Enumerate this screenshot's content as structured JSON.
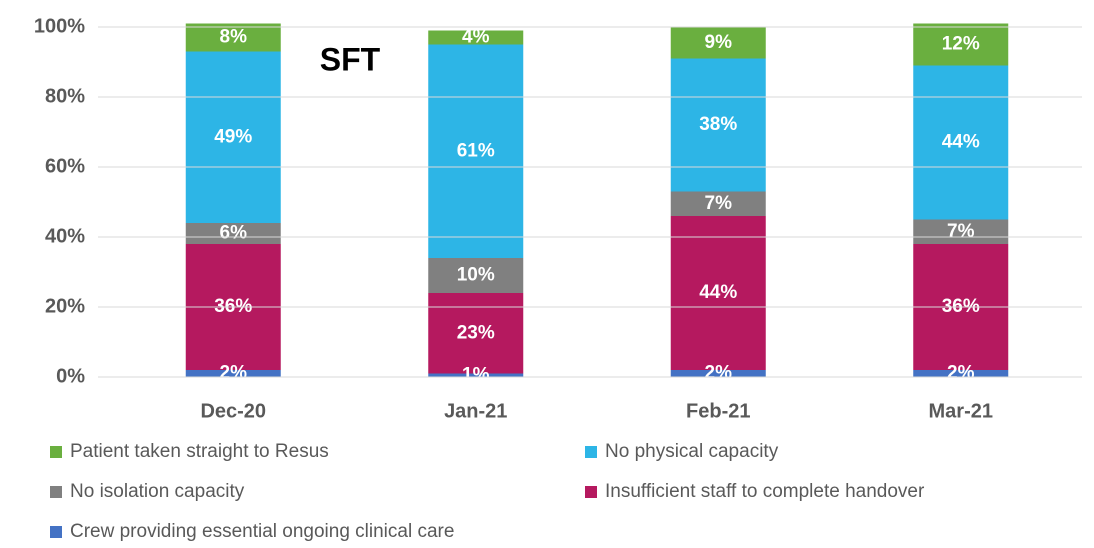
{
  "chart_data": {
    "type": "stacked_bar",
    "annotation": "SFT",
    "categories": [
      "Dec-20",
      "Jan-21",
      "Feb-21",
      "Mar-21"
    ],
    "series": [
      {
        "name": "Patient taken straight to Resus",
        "color": "#6aaf3f",
        "values": [
          8,
          4,
          9,
          12
        ],
        "value_labels": [
          "8%",
          "4%",
          "9%",
          "12%"
        ]
      },
      {
        "name": "No physical capacity",
        "color": "#2db5e6",
        "values": [
          49,
          61,
          38,
          44
        ],
        "value_labels": [
          "49%",
          "61%",
          "38%",
          "44%"
        ]
      },
      {
        "name": "No isolation capacity",
        "color": "#808080",
        "values": [
          6,
          10,
          7,
          7
        ],
        "value_labels": [
          "6%",
          "10%",
          "7%",
          "7%"
        ]
      },
      {
        "name": "Insufficient staff to complete handover",
        "color": "#b5195f",
        "values": [
          36,
          23,
          44,
          36
        ],
        "value_labels": [
          "36%",
          "23%",
          "44%",
          "36%"
        ]
      },
      {
        "name": "Crew providing essential ongoing clinical care",
        "color": "#4472c4",
        "values": [
          2,
          1,
          2,
          2
        ],
        "value_labels": [
          "2%",
          "1%",
          "2%",
          "2%"
        ]
      }
    ],
    "ylim": [
      0,
      100
    ],
    "yticks": [
      {
        "value": 0,
        "label": "0%"
      },
      {
        "value": 20,
        "label": "20%"
      },
      {
        "value": 40,
        "label": "40%"
      },
      {
        "value": 60,
        "label": "60%"
      },
      {
        "value": 80,
        "label": "80%"
      },
      {
        "value": 100,
        "label": "100%"
      }
    ],
    "grid": true
  }
}
